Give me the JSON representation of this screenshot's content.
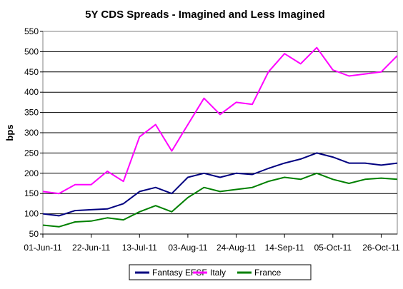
{
  "chart_data": {
    "type": "line",
    "title": "5Y CDS Spreads - Imagined and Less Imagined",
    "xlabel": "",
    "ylabel": "bps",
    "ylim": [
      50,
      550
    ],
    "yticks": [
      50,
      100,
      150,
      200,
      250,
      300,
      350,
      400,
      450,
      500,
      550
    ],
    "x_tick_labels": [
      "01-Jun-11",
      "22-Jun-11",
      "13-Jul-11",
      "03-Aug-11",
      "24-Aug-11",
      "14-Sep-11",
      "05-Oct-11",
      "26-Oct-11"
    ],
    "x": [
      "2011-06-01",
      "2011-06-08",
      "2011-06-15",
      "2011-06-22",
      "2011-06-29",
      "2011-07-06",
      "2011-07-13",
      "2011-07-20",
      "2011-07-27",
      "2011-08-03",
      "2011-08-10",
      "2011-08-17",
      "2011-08-24",
      "2011-08-31",
      "2011-09-07",
      "2011-09-14",
      "2011-09-21",
      "2011-09-28",
      "2011-10-05",
      "2011-10-12",
      "2011-10-19",
      "2011-10-26",
      "2011-11-02"
    ],
    "grid": "horizontal",
    "legend_position": "bottom",
    "series": [
      {
        "name": "Fantasy EFSF",
        "color": "#000080",
        "values": [
          100,
          95,
          108,
          110,
          112,
          125,
          155,
          165,
          150,
          190,
          200,
          190,
          200,
          197,
          212,
          225,
          235,
          250,
          240,
          225,
          225,
          220,
          225
        ]
      },
      {
        "name": "Italy",
        "color": "#ff00ff",
        "values": [
          155,
          150,
          172,
          172,
          205,
          180,
          290,
          320,
          255,
          320,
          385,
          345,
          375,
          370,
          450,
          495,
          470,
          510,
          455,
          440,
          445,
          450,
          490
        ]
      },
      {
        "name": "France",
        "color": "#008000",
        "values": [
          72,
          68,
          80,
          82,
          90,
          85,
          105,
          120,
          105,
          140,
          165,
          155,
          160,
          165,
          180,
          190,
          185,
          200,
          185,
          175,
          185,
          188,
          185
        ]
      }
    ]
  }
}
